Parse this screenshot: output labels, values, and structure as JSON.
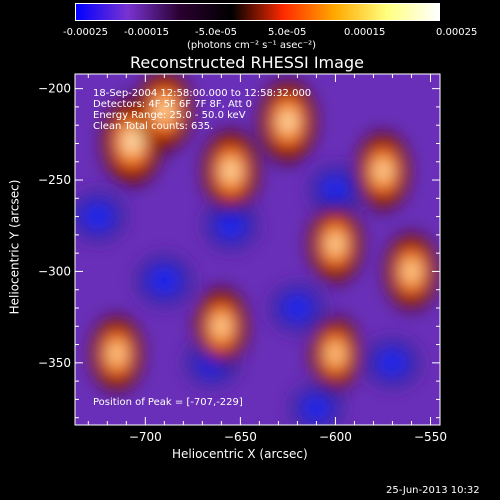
{
  "colorbar": {
    "ticks": [
      "-0.00025",
      "-0.00015",
      "-5.0e-05",
      "5.0e-05",
      "0.00015",
      "0.00025"
    ],
    "units": "(photons cm⁻² s⁻¹ asec⁻²)",
    "range": [
      -0.00025,
      0.00025
    ],
    "colors": [
      "#0000ff",
      "#7a33d1",
      "#2a0030",
      "#000000",
      "#ff2a00",
      "#ffaa00",
      "#ffff80",
      "#ffffff"
    ]
  },
  "chart_data": {
    "type": "heatmap",
    "title": "Reconstructed RHESSI Image",
    "xlabel": "Heliocentric X (arcsec)",
    "ylabel": "Heliocentric Y (arcsec)",
    "xlim": [
      -737,
      -545
    ],
    "ylim": [
      -384,
      -192
    ],
    "x_ticks": [
      -700,
      -650,
      -600,
      -550
    ],
    "y_ticks": [
      -200,
      -250,
      -300,
      -350
    ],
    "annotations": {
      "time_range": "18-Sep-2004 12:58:00.000 to 12:58:32.000",
      "detectors": "Detectors: 4F 5F 6F 7F 8F, Att 0",
      "energy_range": "Energy Range: 25.0 - 50.0 keV",
      "clean": "Clean    Total counts: 635.",
      "peak": "Position of Peak = [-707,-229]"
    },
    "peak_position": [
      -707,
      -229
    ],
    "hot_spots": [
      {
        "x": -707,
        "y": -229,
        "level": 1.0
      },
      {
        "x": -690,
        "y": -212,
        "level": 0.7
      },
      {
        "x": -655,
        "y": -245,
        "level": 0.75
      },
      {
        "x": -625,
        "y": -218,
        "level": 0.8
      },
      {
        "x": -575,
        "y": -245,
        "level": 0.6
      },
      {
        "x": -600,
        "y": -285,
        "level": 0.6
      },
      {
        "x": -560,
        "y": -300,
        "level": 0.55
      },
      {
        "x": -660,
        "y": -330,
        "level": 0.55
      },
      {
        "x": -715,
        "y": -345,
        "level": 0.5
      },
      {
        "x": -600,
        "y": -345,
        "level": 0.4
      }
    ],
    "cold_spots": [
      {
        "x": -725,
        "y": -270,
        "level": -0.7
      },
      {
        "x": -690,
        "y": -305,
        "level": -0.8
      },
      {
        "x": -655,
        "y": -275,
        "level": -0.6
      },
      {
        "x": -620,
        "y": -320,
        "level": -0.6
      },
      {
        "x": -600,
        "y": -255,
        "level": -0.5
      },
      {
        "x": -665,
        "y": -350,
        "level": -0.55
      },
      {
        "x": -610,
        "y": -375,
        "level": -0.5
      },
      {
        "x": -570,
        "y": -350,
        "level": -0.65
      }
    ]
  },
  "footer": {
    "timestamp": "25-Jun-2013 10:32"
  }
}
